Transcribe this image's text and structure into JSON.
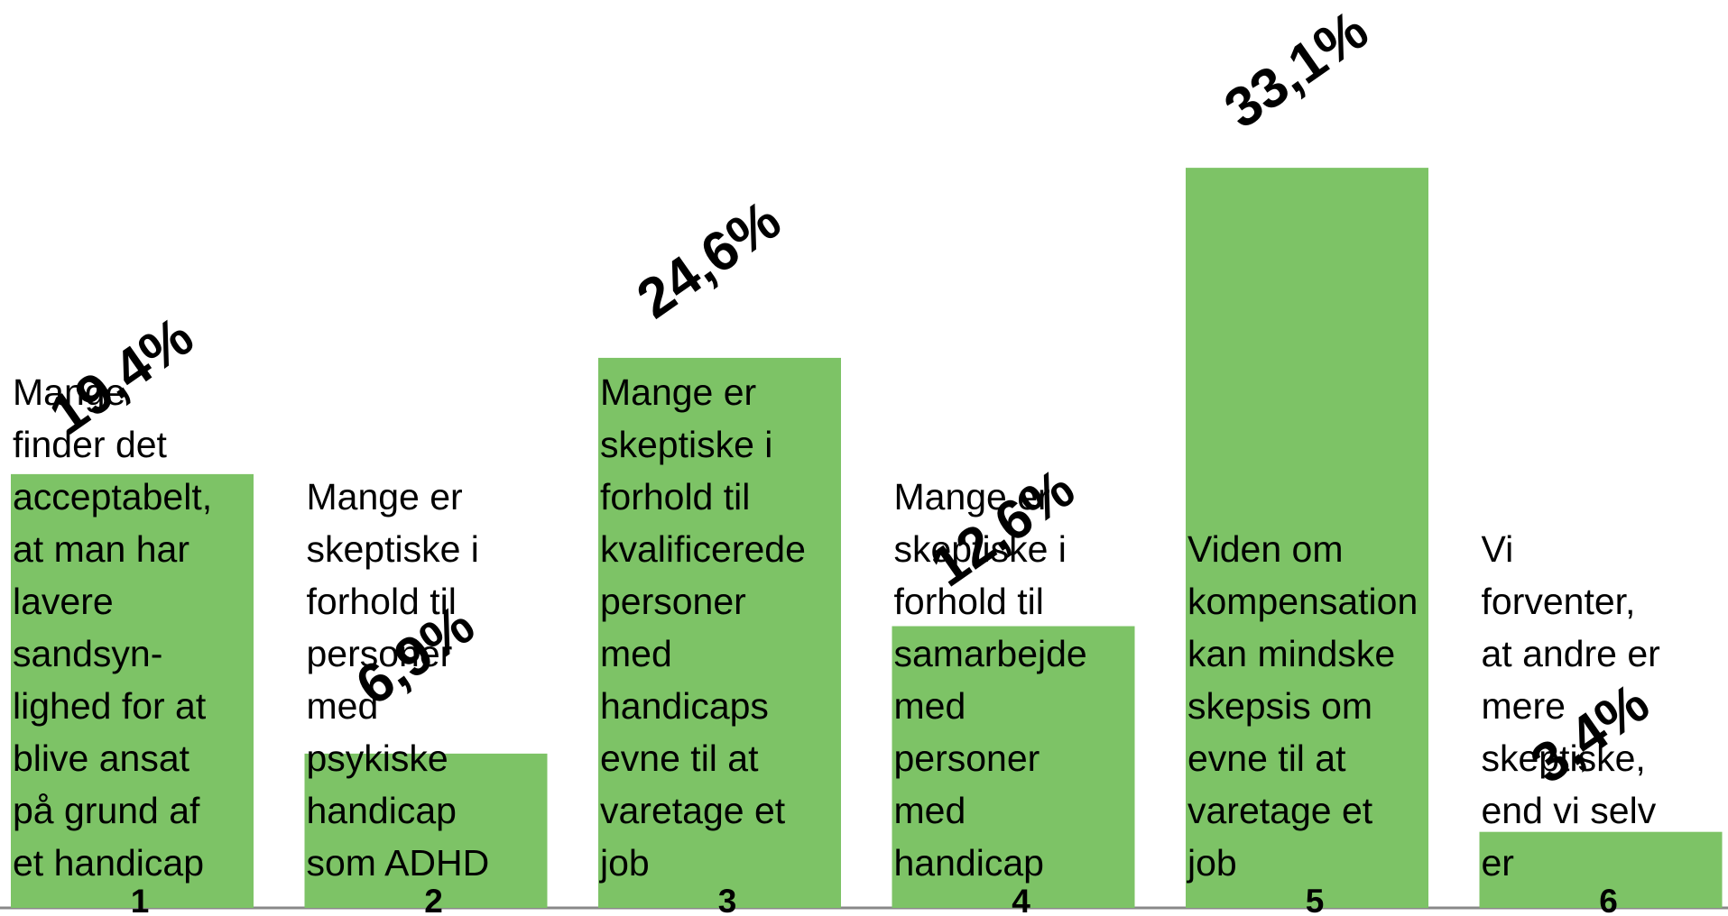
{
  "chart_data": {
    "type": "bar",
    "categories": [
      "1",
      "2",
      "3",
      "4",
      "5",
      "6"
    ],
    "values": [
      19.4,
      6.9,
      24.6,
      12.6,
      33.1,
      3.4
    ],
    "value_labels": [
      "19,4%",
      "6,9%",
      "24,6%",
      "12,6%",
      "33,1%",
      "3,4%"
    ],
    "color": "#7dc366",
    "annotations": [
      [
        "Mange",
        "finder det",
        "acceptabelt,",
        "at man har",
        "lavere",
        "sandsyn-",
        "lighed for at",
        "blive ansat",
        "på grund af",
        "et handicap"
      ],
      [
        "Mange er",
        "skeptiske i",
        "forhold til",
        "personer",
        "med",
        "psykiske",
        "handicap",
        "som ADHD"
      ],
      [
        "Mange er",
        "skeptiske i",
        "forhold til",
        "kvalificerede",
        "personer",
        "med",
        "handicaps",
        "evne til at",
        "varetage et",
        "job"
      ],
      [
        "Mange er",
        "skeptiske i",
        "forhold til",
        "samarbejde",
        "med",
        "personer",
        "med",
        "handicap"
      ],
      [
        "Viden om",
        "kompensation",
        "kan mindske",
        "skepsis om",
        "evne til at",
        "varetage et",
        "job"
      ],
      [
        "Vi",
        "forventer,",
        "at andre er",
        "mere",
        "skeptiske,",
        "end vi selv",
        "er"
      ]
    ]
  }
}
